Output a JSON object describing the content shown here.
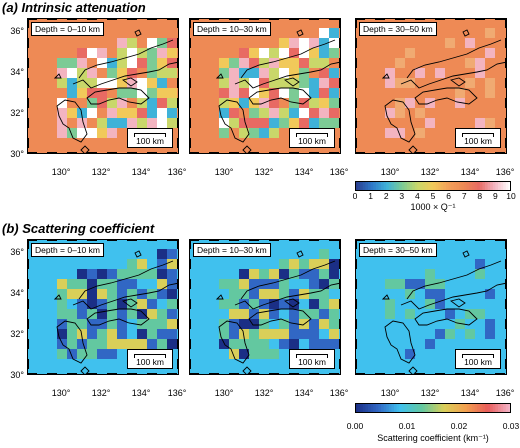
{
  "sections": [
    {
      "title": "(a) Intrinsic attenuation",
      "colorbar": {
        "ticks": [
          "0",
          "1",
          "2",
          "3",
          "4",
          "5",
          "6",
          "7",
          "8",
          "9",
          "10"
        ],
        "title": "1000 × Q⁻¹"
      },
      "background_color": "#ee8a55"
    },
    {
      "title": "(b) Scattering coefficient",
      "colorbar": {
        "ticks": [
          "0.00",
          "0.01",
          "0.02",
          "0.03"
        ],
        "title": "Scattering coefficient (km⁻¹)"
      },
      "background_color": "#40c1ee"
    }
  ],
  "depth_labels": [
    "Depth = 0–10 km",
    "Depth = 10–30 km",
    "Depth = 30–50 km"
  ],
  "scale_label": "100 km",
  "lat_labels": [
    "36°",
    "34°",
    "32°",
    "30°"
  ],
  "lon_labels": [
    "130°",
    "132°",
    "134°",
    "136°"
  ],
  "colors": {
    "attenuation_scale": [
      "#2a3f8f",
      "#2f78c8",
      "#3fb2d8",
      "#7ccb95",
      "#c9d76a",
      "#f1c95a",
      "#f3a05a",
      "#ee8a55",
      "#e86a63",
      "#f3b4c0",
      "#ffffff"
    ],
    "scattering_scale": [
      "#1b2f86",
      "#3167c4",
      "#40c1ee",
      "#63c8a0",
      "#d9cf59",
      "#f2a04f",
      "#e85c5a",
      "#f3b4c8"
    ],
    "coast": "#000000"
  }
}
